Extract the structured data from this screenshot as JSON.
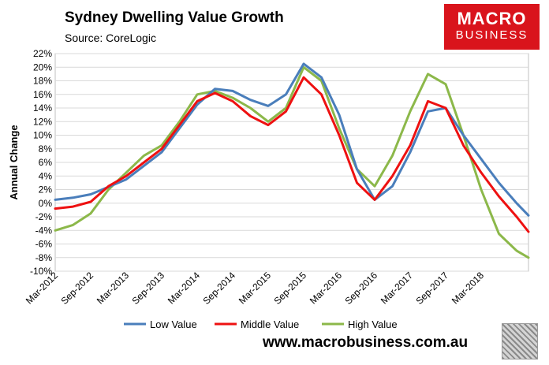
{
  "header": {
    "title": "Sydney Dwelling Value Growth",
    "source": "Source: CoreLogic"
  },
  "logo": {
    "line1": "MACRO",
    "line2": "BUSINESS",
    "bg": "#d9141c"
  },
  "footer": {
    "url": "www.macrobusiness.com.au"
  },
  "chart_data": {
    "type": "line",
    "ylabel": "Annual Change",
    "xlabel": "",
    "ylim": [
      -10,
      22
    ],
    "y_ticks": [
      "22%",
      "20%",
      "18%",
      "16%",
      "14%",
      "12%",
      "10%",
      "8%",
      "6%",
      "4%",
      "2%",
      "0%",
      "-2%",
      "-4%",
      "-6%",
      "-8%",
      "-10%"
    ],
    "x_ticks": [
      "Mar-2012",
      "Sep-2012",
      "Mar-2013",
      "Sep-2013",
      "Mar-2014",
      "Sep-2014",
      "Mar-2015",
      "Sep-2015",
      "Mar-2016",
      "Sep-2016",
      "Mar-2017",
      "Sep-2017",
      "Mar-2018"
    ],
    "x_start": "Mar-2012",
    "x_end": "Nov-2018",
    "grid": true,
    "legend": "bottom",
    "x": [
      "Mar-2012",
      "Jun-2012",
      "Sep-2012",
      "Dec-2012",
      "Mar-2013",
      "Jun-2013",
      "Sep-2013",
      "Dec-2013",
      "Mar-2014",
      "Jun-2014",
      "Sep-2014",
      "Dec-2014",
      "Mar-2015",
      "Jun-2015",
      "Sep-2015",
      "Dec-2015",
      "Mar-2016",
      "Jun-2016",
      "Sep-2016",
      "Dec-2016",
      "Mar-2017",
      "Jun-2017",
      "Sep-2017",
      "Dec-2017",
      "Mar-2018",
      "Jun-2018",
      "Sep-2018",
      "Nov-2018"
    ],
    "series": [
      {
        "name": "Low Value",
        "color": "#4a7ebb",
        "values": [
          0.5,
          0.8,
          1.3,
          2.4,
          3.5,
          5.5,
          7.5,
          11.0,
          14.5,
          16.8,
          16.5,
          15.2,
          14.3,
          16.0,
          20.5,
          18.5,
          13.0,
          5.0,
          0.5,
          2.5,
          7.5,
          13.5,
          14.0,
          10.0,
          6.5,
          3.0,
          0.0,
          -1.8
        ]
      },
      {
        "name": "Middle Value",
        "color": "#ee1111",
        "values": [
          -0.8,
          -0.5,
          0.2,
          2.5,
          4.0,
          6.0,
          8.0,
          11.5,
          15.0,
          16.2,
          15.0,
          12.8,
          11.5,
          13.5,
          18.5,
          16.0,
          10.0,
          3.0,
          0.5,
          4.0,
          8.5,
          15.0,
          14.0,
          8.5,
          4.5,
          1.0,
          -2.0,
          -4.2
        ]
      },
      {
        "name": "High Value",
        "color": "#8cb84a",
        "values": [
          -4.0,
          -3.2,
          -1.5,
          2.0,
          4.5,
          7.0,
          8.5,
          12.0,
          16.0,
          16.5,
          15.5,
          14.0,
          12.0,
          14.0,
          20.0,
          18.0,
          11.0,
          5.0,
          2.5,
          7.0,
          13.5,
          19.0,
          17.5,
          10.0,
          2.0,
          -4.5,
          -7.0,
          -8.0
        ]
      }
    ]
  }
}
